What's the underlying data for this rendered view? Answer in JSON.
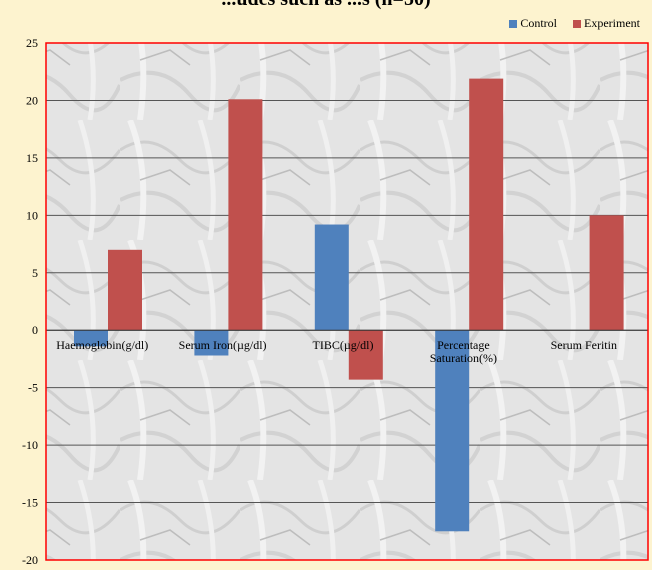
{
  "chart_data": {
    "type": "bar",
    "title": "...udes such as ...s (n=50)",
    "categories": [
      "Haemoglobin(g/dl)",
      "Serum Iron(µg/dl)",
      "TIBC(µg/dl)",
      "Percentage Saturation(%)",
      "Serum Feritin"
    ],
    "series": [
      {
        "name": "Control",
        "color": "#4f81bd",
        "values": [
          -1.4,
          -2.2,
          9.2,
          -17.5,
          0
        ]
      },
      {
        "name": "Experiment",
        "color": "#c0504d",
        "values": [
          7.0,
          20.1,
          -4.3,
          21.9,
          10.0
        ]
      }
    ],
    "ylim": [
      -20,
      25
    ],
    "yticks": [
      25,
      20,
      15,
      10,
      5,
      0,
      -5,
      -10,
      -15,
      -20
    ],
    "xlabel": "",
    "ylabel": "",
    "grid": true,
    "legend": "top-right",
    "plot_border_color": "#ff0000"
  }
}
